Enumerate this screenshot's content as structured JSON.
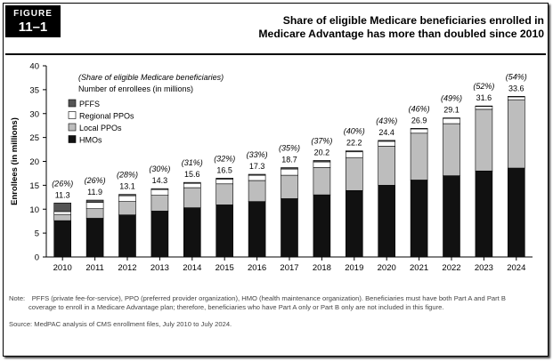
{
  "figure": {
    "label": "FIGURE",
    "number": "11–1",
    "title_line1": "Share of eligible Medicare beneficiaries enrolled in",
    "title_line2": "Medicare Advantage has more than doubled since 2010"
  },
  "chart_data": {
    "type": "bar",
    "stacked": true,
    "ylabel": "Enrollees (in millions)",
    "xlabel": "",
    "ylim": [
      0,
      40
    ],
    "yticks": [
      0,
      5,
      10,
      15,
      20,
      25,
      30,
      35,
      40
    ],
    "legend_title1": "(Share of eligible Medicare beneficiaries)",
    "legend_title2": "Number of enrollees (in millions)",
    "categories": [
      "2010",
      "2011",
      "2012",
      "2013",
      "2014",
      "2015",
      "2016",
      "2017",
      "2018",
      "2019",
      "2020",
      "2021",
      "2022",
      "2023",
      "2024"
    ],
    "totals": [
      11.3,
      11.9,
      13.1,
      14.3,
      15.6,
      16.5,
      17.3,
      18.7,
      20.2,
      22.2,
      24.4,
      26.9,
      29.1,
      31.6,
      33.6
    ],
    "total_labels": [
      "11.3",
      "11.9",
      "13.1",
      "14.3",
      "15.6",
      "16.5",
      "17.3",
      "18.7",
      "20.2",
      "22.2",
      "24.4",
      "26.9",
      "29.1",
      "31.6",
      "33.6"
    ],
    "shares": [
      "(26%)",
      "(26%)",
      "(28%)",
      "(30%)",
      "(31%)",
      "(32%)",
      "(33%)",
      "(35%)",
      "(37%)",
      "(40%)",
      "(43%)",
      "(46%)",
      "(49%)",
      "(52%)",
      "(54%)"
    ],
    "series": [
      {
        "name": "HMOs",
        "color": "#111111",
        "values": [
          7.6,
          8.1,
          8.8,
          9.6,
          10.3,
          10.9,
          11.6,
          12.2,
          13.0,
          13.9,
          15.0,
          16.1,
          17.0,
          18.0,
          18.6
        ]
      },
      {
        "name": "Local PPOs",
        "color": "#bdbdbd",
        "values": [
          1.3,
          2.0,
          2.8,
          3.3,
          4.2,
          4.4,
          4.4,
          4.9,
          5.7,
          6.9,
          8.2,
          9.8,
          10.9,
          12.9,
          14.3
        ]
      },
      {
        "name": "Regional PPOs",
        "color": "#ffffff",
        "values": [
          0.6,
          1.3,
          1.2,
          1.2,
          0.9,
          1.0,
          1.1,
          1.3,
          1.2,
          1.2,
          1.0,
          0.9,
          1.1,
          0.6,
          0.6
        ]
      },
      {
        "name": "PFFS",
        "color": "#555555",
        "values": [
          1.8,
          0.5,
          0.3,
          0.2,
          0.2,
          0.2,
          0.2,
          0.3,
          0.3,
          0.2,
          0.2,
          0.1,
          0.1,
          0.1,
          0.1
        ]
      }
    ],
    "legend": [
      "PFFS",
      "Regional PPOs",
      "Local PPOs",
      "HMOs"
    ]
  },
  "notes": {
    "note": "Note: PFFS (private fee-for-service), PPO (preferred provider organization), HMO (health maintenance organization). Beneficiaries must have both Part A and Part B coverage to enroll in a Medicare Advantage plan; therefore, beneficiaries who have Part A only or Part B only are not included in this figure.",
    "source": "Source: MedPAC analysis of CMS enrollment files, July 2010 to July 2024."
  }
}
